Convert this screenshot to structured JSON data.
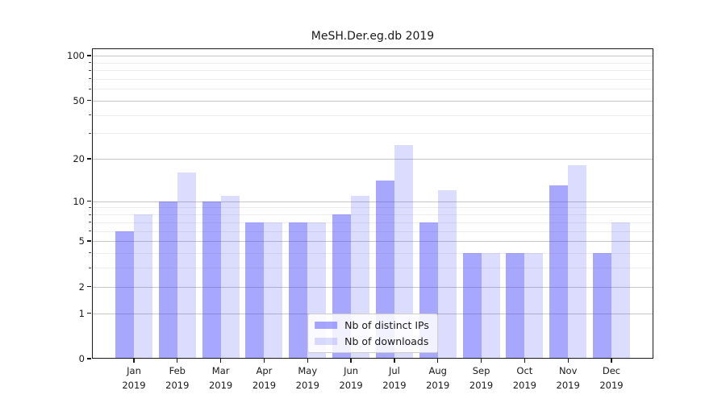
{
  "title": "MeSH.Der.eg.db 2019",
  "chart_data": {
    "type": "bar",
    "title": "MeSH.Der.eg.db 2019",
    "categories": [
      "Jan",
      "Feb",
      "Mar",
      "Apr",
      "May",
      "Jun",
      "Jul",
      "Aug",
      "Sep",
      "Oct",
      "Nov",
      "Dec"
    ],
    "year_label": "2019",
    "series": [
      {
        "name": "Nb of distinct IPs",
        "values": [
          6,
          10,
          10,
          7,
          7,
          8,
          14,
          7,
          4,
          4,
          13,
          4
        ],
        "color": "rgba(60,60,250,0.45)"
      },
      {
        "name": "Nb of downloads",
        "values": [
          8,
          16,
          11,
          7,
          7,
          11,
          25,
          12,
          4,
          4,
          18,
          7
        ],
        "color": "rgba(60,60,250,0.18)"
      }
    ],
    "xlabel": "",
    "ylabel": "",
    "yscale": "log1p",
    "ylim": [
      0,
      112
    ],
    "yticks_major": [
      0,
      1,
      2,
      5,
      10,
      20,
      50,
      100
    ],
    "yticks_minor": [
      3,
      4,
      6,
      7,
      8,
      9,
      30,
      40,
      60,
      70,
      80,
      90
    ],
    "grid": true,
    "legend_position": "lower center"
  }
}
